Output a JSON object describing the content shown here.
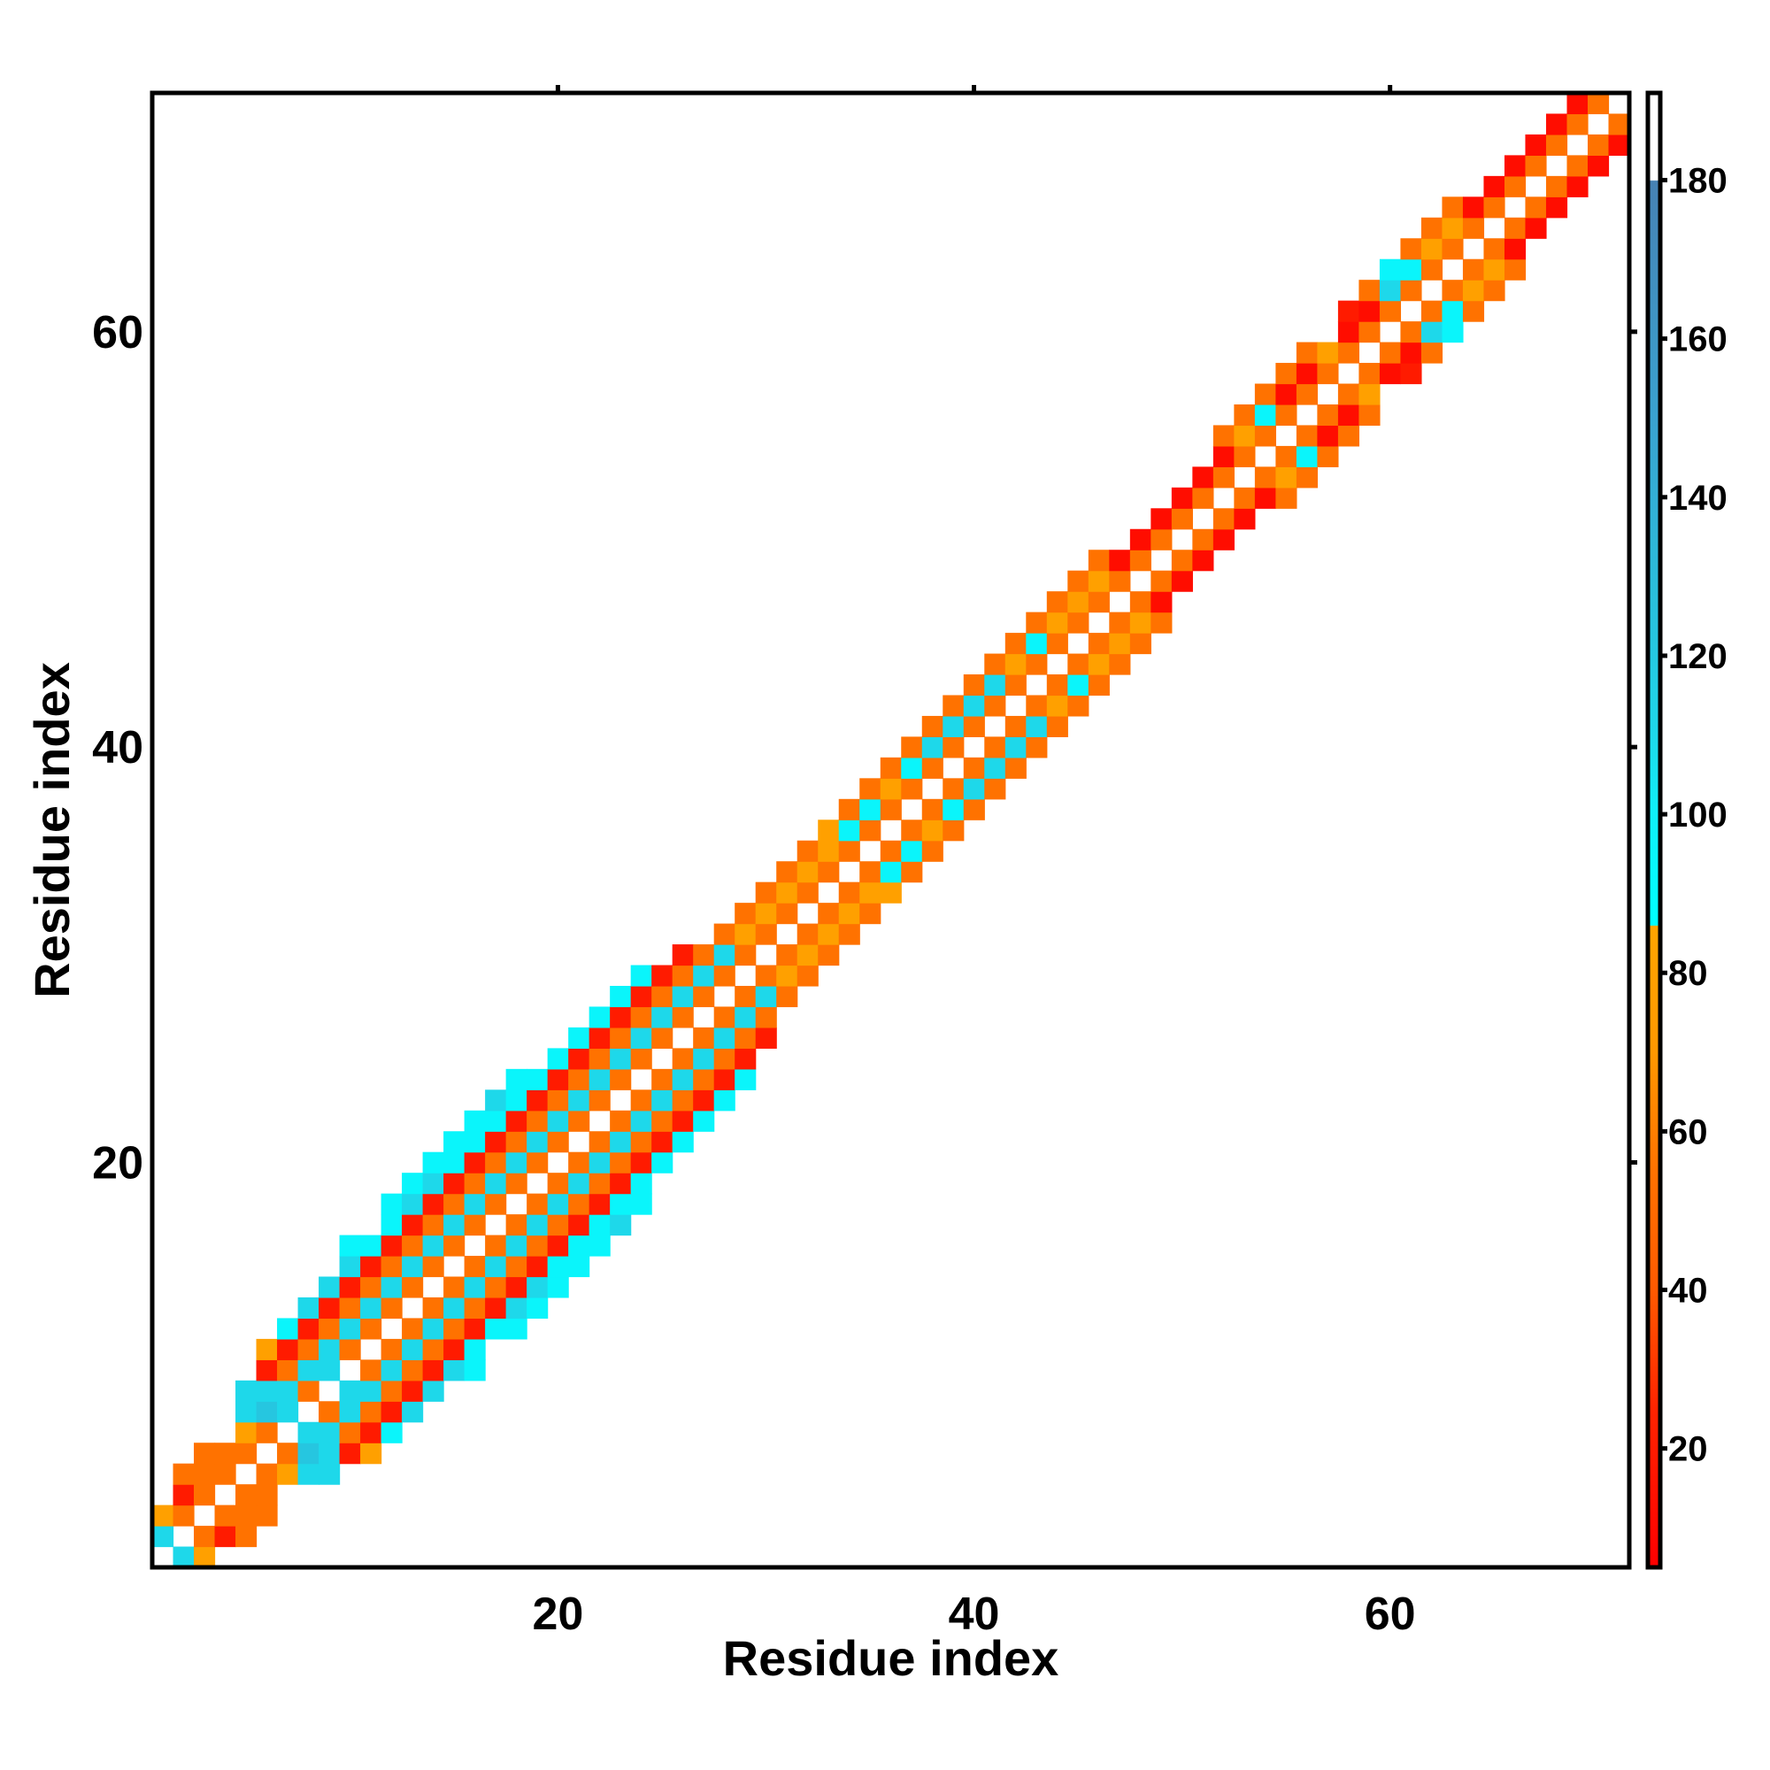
{
  "chart_data": {
    "type": "heatmap",
    "title": "",
    "xlabel": "Residue index",
    "ylabel": "Residue index",
    "n_residues": 71,
    "xlim": [
      0.5,
      71.5
    ],
    "ylim": [
      0.5,
      71.5
    ],
    "xticks": [
      "20",
      "40",
      "60"
    ],
    "xtick_values": [
      20,
      40,
      60
    ],
    "yticks": [
      "20",
      "40",
      "60"
    ],
    "ytick_values": [
      20,
      40,
      60
    ],
    "symmetric": true,
    "diagonal": "empty",
    "encoding": "rows[i-1][d-1] = value at (residue i, residue i+d); matrix mirrored",
    "rows": [
      [
        110,
        80
      ],
      [
        55,
        20,
        55
      ],
      [
        55,
        55,
        55
      ],
      [
        55,
        55
      ],
      [
        55,
        80,
        110,
        110
      ],
      [
        55,
        122,
        110,
        20,
        80
      ],
      [
        110,
        110,
        55,
        20,
        95
      ],
      [
        55,
        110,
        55,
        20,
        110
      ],
      [
        110,
        110,
        55,
        20,
        110
      ],
      [
        55,
        110,
        55,
        20,
        110,
        95
      ],
      [
        55,
        110,
        55,
        20,
        95
      ],
      [
        55,
        110,
        55,
        20,
        95,
        95
      ],
      [
        55,
        110,
        55,
        20,
        110,
        95
      ],
      [
        55,
        110,
        55,
        20,
        110,
        95
      ],
      [
        55,
        110,
        55,
        20,
        95,
        95
      ],
      [
        55,
        110,
        55,
        20,
        95,
        95
      ],
      [
        55,
        110,
        55,
        20,
        95,
        110
      ],
      [
        55,
        110,
        55,
        20,
        95,
        95
      ],
      [
        55,
        110,
        55,
        20,
        95
      ],
      [
        55,
        110,
        55,
        20,
        95
      ],
      [
        55,
        110,
        55,
        20,
        95
      ],
      [
        55,
        110,
        55,
        20,
        95
      ],
      [
        55,
        110,
        55,
        20,
        95
      ],
      [
        55,
        110,
        55,
        20,
        95
      ],
      [
        55,
        110,
        55,
        20
      ],
      [
        55,
        110,
        55,
        20
      ],
      [
        55,
        110,
        55
      ],
      [
        55,
        110,
        55
      ],
      [
        55,
        80,
        55
      ],
      [
        55,
        80,
        55
      ],
      [
        55,
        80,
        55
      ],
      [
        55,
        80,
        55
      ],
      [
        55,
        80,
        80
      ],
      [
        55,
        95,
        55
      ],
      [
        55,
        95,
        55
      ],
      [
        55,
        80,
        55
      ],
      [
        55,
        95,
        55
      ],
      [
        55,
        110,
        55
      ],
      [
        55,
        110,
        55
      ],
      [
        55,
        110,
        55
      ],
      [
        55,
        110,
        55
      ],
      [
        55,
        80,
        55
      ],
      [
        55,
        95,
        55
      ],
      [
        55,
        80,
        55
      ],
      [
        55,
        75,
        55
      ],
      [
        55,
        80,
        55
      ],
      [
        55,
        12
      ],
      [
        55,
        12
      ],
      [
        55,
        12
      ],
      [
        55,
        12
      ],
      [
        55,
        12
      ],
      [
        55,
        12,
        55
      ],
      [
        55,
        80,
        55
      ],
      [
        55,
        95,
        55
      ],
      [
        55,
        12,
        55
      ],
      [
        55,
        12,
        55
      ],
      [
        55,
        80
      ],
      [
        55,
        12,
        20
      ],
      [
        55,
        12,
        55
      ],
      [
        55,
        110,
        95
      ],
      [
        55,
        95,
        55
      ],
      [
        55,
        80,
        55
      ],
      [
        55,
        80,
        55
      ],
      [
        55,
        12
      ],
      [
        55,
        12
      ],
      [
        55,
        12
      ],
      [
        55,
        12
      ],
      [
        55,
        12
      ],
      [
        55,
        12
      ],
      [
        55
      ],
      []
    ],
    "colorbar": {
      "range": [
        5,
        191
      ],
      "ticks": [
        "20",
        "40",
        "60",
        "80",
        "100",
        "120",
        "140",
        "160",
        "180"
      ],
      "tick_values": [
        20,
        40,
        60,
        80,
        100,
        120,
        140,
        160,
        180
      ],
      "stops": [
        {
          "v": 5,
          "c": "#ff0000"
        },
        {
          "v": 25,
          "c": "#ff2400"
        },
        {
          "v": 40,
          "c": "#ff5a00"
        },
        {
          "v": 55,
          "c": "#ff7200"
        },
        {
          "v": 70,
          "c": "#ff9800"
        },
        {
          "v": 85.9,
          "c": "#ffa500"
        },
        {
          "v": 86,
          "c": "#00ffff"
        },
        {
          "v": 100,
          "c": "#0ff0f8"
        },
        {
          "v": 110,
          "c": "#1ed8ea"
        },
        {
          "v": 125,
          "c": "#28c2de"
        },
        {
          "v": 150,
          "c": "#3aa2d0"
        },
        {
          "v": 179.9,
          "c": "#4682b4"
        },
        {
          "v": 180,
          "c": "#ffffff"
        },
        {
          "v": 191,
          "c": "#ffffff"
        }
      ]
    }
  }
}
